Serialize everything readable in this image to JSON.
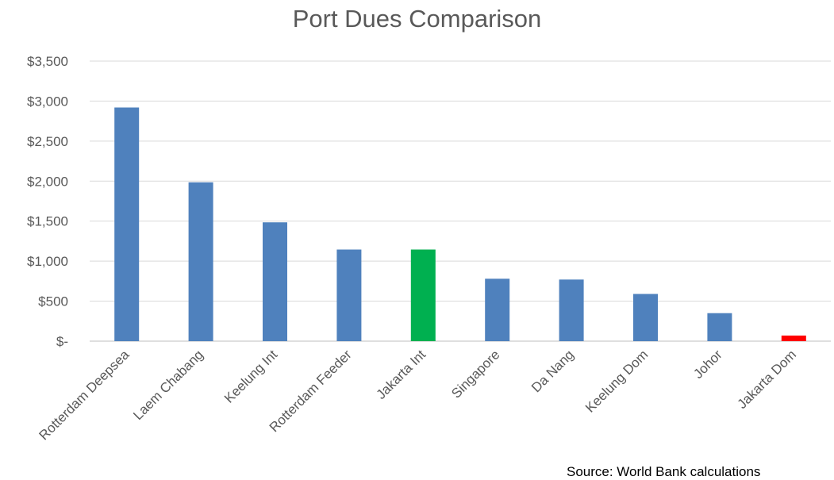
{
  "chart_data": {
    "type": "bar",
    "title": "Port Dues Comparison",
    "categories": [
      "Rotterdam Deepsea",
      "Laem Chabang",
      "Keelung Int",
      "Rotterdam Feeder",
      "Jakarta Int",
      "Singapore",
      "Da Nang",
      "Keelung Dom",
      "Johor",
      "Jakarta Dom"
    ],
    "values": [
      2920,
      1985,
      1485,
      1145,
      1145,
      780,
      770,
      590,
      350,
      70
    ],
    "bar_colors": [
      "#4F81BD",
      "#4F81BD",
      "#4F81BD",
      "#4F81BD",
      "#00B050",
      "#4F81BD",
      "#4F81BD",
      "#4F81BD",
      "#4F81BD",
      "#FF0000"
    ],
    "ylim": [
      0,
      3500
    ],
    "yticks": [
      0,
      500,
      1000,
      1500,
      2000,
      2500,
      3000,
      3500
    ],
    "ytick_labels": [
      "$-",
      "$500",
      "$1,000",
      "$1,500",
      "$2,000",
      "$2,500",
      "$3,000",
      "$3,500"
    ],
    "xlabel": "",
    "ylabel": "",
    "grid": true,
    "legend": "none"
  },
  "source_note": "Source: World Bank calculations"
}
